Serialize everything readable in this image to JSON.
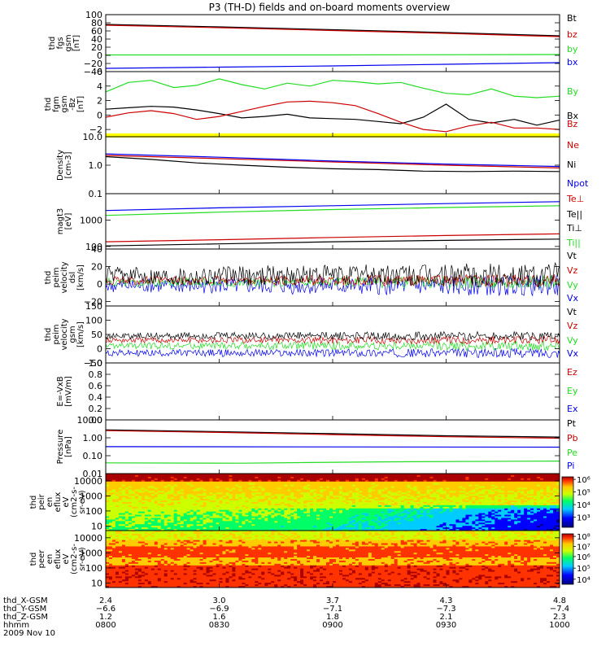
{
  "title": "P3 (TH-D) fields and on-board moments overview",
  "colors": {
    "black": "#000000",
    "red": "#cc0000",
    "green": "#22dd22",
    "blue": "#0000ee",
    "yellow": "#ffff00"
  },
  "chart_data": [
    {
      "id": "fgs",
      "type": "line",
      "ylabel": [
        "thd",
        "fgs",
        "gsm",
        "[nT]"
      ],
      "ylim": [
        -40,
        100
      ],
      "yticks": [
        {
          "v": 100,
          "l": "100"
        },
        {
          "v": 80,
          "l": "80"
        },
        {
          "v": 60,
          "l": "60"
        },
        {
          "v": 40,
          "l": "40"
        },
        {
          "v": 20,
          "l": "20"
        },
        {
          "v": 0,
          "l": "0"
        },
        {
          "v": -20,
          "l": "−20"
        },
        {
          "v": -40,
          "l": "−40"
        }
      ],
      "legend": [
        {
          "t": "Bt",
          "c": "black"
        },
        {
          "t": "bz",
          "c": "red"
        },
        {
          "t": "by",
          "c": "green"
        },
        {
          "t": "bx",
          "c": "blue"
        }
      ],
      "series": [
        {
          "c": "black",
          "x": [
            0,
            0.25,
            0.5,
            0.75,
            1
          ],
          "y": [
            76,
            70,
            63,
            56,
            48
          ]
        },
        {
          "c": "red",
          "x": [
            0,
            0.25,
            0.5,
            0.75,
            1
          ],
          "y": [
            74,
            68,
            61,
            54,
            46
          ]
        },
        {
          "c": "green",
          "x": [
            0,
            0.5,
            1
          ],
          "y": [
            1,
            1,
            2
          ]
        },
        {
          "c": "blue",
          "x": [
            0,
            0.25,
            0.5,
            0.75,
            1
          ],
          "y": [
            -32,
            -29,
            -26,
            -22,
            -18
          ]
        }
      ]
    },
    {
      "id": "fgm",
      "type": "line",
      "ylabel": [
        "thd",
        "fgm",
        "gsm",
        "-Bz",
        "[nT]"
      ],
      "ylim": [
        -3,
        6
      ],
      "yticks": [
        {
          "v": 6,
          "l": "6"
        },
        {
          "v": 4,
          "l": "4"
        },
        {
          "v": 2,
          "l": "2"
        },
        {
          "v": 0,
          "l": "0"
        },
        {
          "v": -2,
          "l": "−2"
        }
      ],
      "legend": [
        {
          "t": "By",
          "c": "green"
        },
        {
          "t": "Bx",
          "c": "black"
        },
        {
          "t": "Bz",
          "c": "red"
        }
      ],
      "series": [
        {
          "c": "green",
          "x": [
            0,
            0.05,
            0.1,
            0.15,
            0.2,
            0.25,
            0.3,
            0.35,
            0.4,
            0.45,
            0.5,
            0.55,
            0.6,
            0.65,
            0.7,
            0.75,
            0.8,
            0.85,
            0.9,
            0.95,
            1
          ],
          "y": [
            3.2,
            4.5,
            4.8,
            3.8,
            4.1,
            5.0,
            4.2,
            3.6,
            4.4,
            4.0,
            4.8,
            4.6,
            4.3,
            4.5,
            3.7,
            3.0,
            2.8,
            3.6,
            2.6,
            2.4,
            2.6
          ]
        },
        {
          "c": "black",
          "x": [
            0,
            0.05,
            0.1,
            0.15,
            0.2,
            0.25,
            0.3,
            0.35,
            0.4,
            0.45,
            0.5,
            0.55,
            0.6,
            0.65,
            0.7,
            0.75,
            0.8,
            0.85,
            0.9,
            0.95,
            1
          ],
          "y": [
            0.8,
            1.0,
            1.2,
            1.1,
            0.7,
            0.2,
            -0.4,
            -0.2,
            0.1,
            -0.4,
            -0.5,
            -0.6,
            -0.9,
            -1.2,
            -0.3,
            1.5,
            -0.6,
            -1.1,
            -0.6,
            -1.4,
            -0.7
          ]
        },
        {
          "c": "red",
          "x": [
            0,
            0.05,
            0.1,
            0.15,
            0.2,
            0.25,
            0.3,
            0.35,
            0.4,
            0.45,
            0.5,
            0.55,
            0.6,
            0.65,
            0.7,
            0.75,
            0.8,
            0.85,
            0.9,
            0.95,
            1
          ],
          "y": [
            -0.3,
            0.3,
            0.6,
            0.2,
            -0.6,
            -0.2,
            0.5,
            1.2,
            1.8,
            1.9,
            1.7,
            1.3,
            0.2,
            -1.0,
            -2.0,
            -2.3,
            -1.5,
            -1.0,
            -1.8,
            -1.8,
            -2.0
          ]
        }
      ],
      "bar": {
        "c": "yellow",
        "v": -3
      }
    },
    {
      "id": "density",
      "type": "line",
      "scale": "log",
      "ylabel": [
        "Density",
        "[cm-3]"
      ],
      "ylim": [
        0.1,
        10
      ],
      "yticks": [
        {
          "v": 10,
          "l": "10.0"
        },
        {
          "v": 1,
          "l": "1.0"
        },
        {
          "v": 0.1,
          "l": "0.1"
        }
      ],
      "legend": [
        {
          "t": "Ne",
          "c": "red"
        },
        {
          "t": "Ni",
          "c": "black"
        },
        {
          "t": "Npot",
          "c": "blue"
        }
      ],
      "series": [
        {
          "c": "red",
          "x": [
            0,
            0.25,
            0.5,
            0.75,
            1
          ],
          "y": [
            2.2,
            1.7,
            1.3,
            1.0,
            0.8
          ]
        },
        {
          "c": "black",
          "x": [
            0,
            0.1,
            0.2,
            0.3,
            0.4,
            0.5,
            0.6,
            0.7,
            0.8,
            0.9,
            1
          ],
          "y": [
            2.0,
            1.6,
            1.2,
            1.0,
            0.85,
            0.75,
            0.7,
            0.62,
            0.6,
            0.62,
            0.6
          ]
        },
        {
          "c": "blue",
          "x": [
            0,
            0.25,
            0.5,
            0.75,
            1
          ],
          "y": [
            2.5,
            1.9,
            1.4,
            1.1,
            0.9
          ]
        }
      ]
    },
    {
      "id": "magt3",
      "type": "line",
      "scale": "log",
      "ylabel": [
        "magt3",
        "[eV]"
      ],
      "ylim": [
        80,
        10000
      ],
      "yticks": [
        {
          "v": 1000,
          "l": "1000"
        },
        {
          "v": 100,
          "l": "100"
        }
      ],
      "legend": [
        {
          "t": "Te⊥",
          "c": "red"
        },
        {
          "t": "Te||",
          "c": "black"
        },
        {
          "t": "Ti⊥",
          "c": "black"
        },
        {
          "t": "Ti||",
          "c": "green"
        }
      ],
      "series": [
        {
          "c": "blue",
          "x": [
            0,
            0.25,
            0.5,
            0.75,
            1
          ],
          "y": [
            2300,
            2900,
            3500,
            4200,
            5000
          ]
        },
        {
          "c": "green",
          "x": [
            0,
            0.25,
            0.5,
            0.75,
            1
          ],
          "y": [
            1500,
            2000,
            2500,
            3000,
            3500
          ]
        },
        {
          "c": "red",
          "x": [
            0,
            0.25,
            0.5,
            0.75,
            1
          ],
          "y": [
            150,
            180,
            220,
            260,
            300
          ]
        },
        {
          "c": "black",
          "x": [
            0,
            0.25,
            0.5,
            0.75,
            1
          ],
          "y": [
            105,
            125,
            150,
            170,
            190
          ]
        }
      ]
    },
    {
      "id": "vel1",
      "type": "line",
      "ylabel": [
        "thd",
        "peim",
        "velocity",
        "dsl",
        "[km/s]"
      ],
      "ylim": [
        -25,
        40
      ],
      "yticks": [
        {
          "v": 40,
          "l": "40"
        },
        {
          "v": 20,
          "l": "20"
        },
        {
          "v": 0,
          "l": "0"
        },
        {
          "v": -20,
          "l": "−20"
        }
      ],
      "legend": [
        {
          "t": "Vt",
          "c": "black"
        },
        {
          "t": "Vz",
          "c": "red"
        },
        {
          "t": "Vy",
          "c": "green"
        },
        {
          "t": "Vx",
          "c": "blue"
        }
      ],
      "noise": [
        {
          "c": "blue",
          "m": -2,
          "a": 10
        },
        {
          "c": "green",
          "m": 2,
          "a": 6
        },
        {
          "c": "red",
          "m": 4,
          "a": 6
        },
        {
          "c": "black",
          "m": 10,
          "a": 12
        }
      ]
    },
    {
      "id": "vel2",
      "type": "line",
      "ylabel": [
        "thd",
        "peim",
        "velocity",
        "gsm",
        "[km/s]"
      ],
      "ylim": [
        -50,
        150
      ],
      "yticks": [
        {
          "v": 150,
          "l": "150"
        },
        {
          "v": 100,
          "l": "100"
        },
        {
          "v": 50,
          "l": "50"
        },
        {
          "v": 0,
          "l": "0"
        },
        {
          "v": -50,
          "l": "−50"
        }
      ],
      "legend": [
        {
          "t": "Vt",
          "c": "black"
        },
        {
          "t": "Vz",
          "c": "red"
        },
        {
          "t": "Vy",
          "c": "green"
        },
        {
          "t": "Vx",
          "c": "blue"
        }
      ],
      "noise": [
        {
          "c": "blue",
          "m": -15,
          "a": 14
        },
        {
          "c": "green",
          "m": 10,
          "a": 14
        },
        {
          "c": "red",
          "m": 30,
          "a": 12
        },
        {
          "c": "black",
          "m": 45,
          "a": 14
        }
      ]
    },
    {
      "id": "efield",
      "type": "line",
      "ylabel": [
        "E=-VxB",
        "[mV/m]"
      ],
      "ylim": [
        0,
        1
      ],
      "yticks": [
        {
          "v": 1,
          "l": "1.0"
        },
        {
          "v": 0.8,
          "l": "0.8"
        },
        {
          "v": 0.6,
          "l": "0.6"
        },
        {
          "v": 0.4,
          "l": "0.4"
        },
        {
          "v": 0.2,
          "l": "0.2"
        },
        {
          "v": 0,
          "l": "0.0"
        }
      ],
      "legend": [
        {
          "t": "Ez",
          "c": "red"
        },
        {
          "t": "Ey",
          "c": "green"
        },
        {
          "t": "Ex",
          "c": "blue"
        }
      ],
      "series": []
    },
    {
      "id": "pressure",
      "type": "line",
      "scale": "log",
      "ylabel": [
        "Pressure",
        "[nPa]"
      ],
      "ylim": [
        0.01,
        10
      ],
      "yticks": [
        {
          "v": 10,
          "l": "10.00"
        },
        {
          "v": 1,
          "l": "1.00"
        },
        {
          "v": 0.1,
          "l": "0.10"
        },
        {
          "v": 0.01,
          "l": "0.01"
        }
      ],
      "legend": [
        {
          "t": "Pt",
          "c": "black"
        },
        {
          "t": "Pb",
          "c": "red"
        },
        {
          "t": "Pe",
          "c": "green"
        },
        {
          "t": "Pi",
          "c": "blue"
        }
      ],
      "series": [
        {
          "c": "black",
          "x": [
            0,
            0.25,
            0.5,
            0.75,
            1
          ],
          "y": [
            2.8,
            2.2,
            1.7,
            1.3,
            1.1
          ]
        },
        {
          "c": "red",
          "x": [
            0,
            0.25,
            0.5,
            0.75,
            1
          ],
          "y": [
            2.5,
            2.0,
            1.5,
            1.15,
            0.95
          ]
        },
        {
          "c": "blue",
          "x": [
            0,
            0.5,
            1
          ],
          "y": [
            0.32,
            0.31,
            0.3
          ]
        },
        {
          "c": "green",
          "x": [
            0,
            0.3,
            0.6,
            1
          ],
          "y": [
            0.04,
            0.038,
            0.045,
            0.05
          ]
        }
      ]
    },
    {
      "id": "ion_spec",
      "type": "heatmap",
      "scale": "log",
      "ylabel": [
        "thd",
        "peir",
        "en",
        "eflux",
        "eV",
        "(cm2-s-",
        "sr-eV)"
      ],
      "ylim": [
        5,
        30000
      ],
      "yticks": [
        {
          "v": 10000,
          "l": "10000"
        },
        {
          "v": 1000,
          "l": "1000"
        },
        {
          "v": 100,
          "l": "100"
        },
        {
          "v": 10,
          "l": "10"
        }
      ],
      "cbar": [
        {
          "l": "10⁶",
          "f": 0.05
        },
        {
          "l": "10⁵",
          "f": 0.3
        },
        {
          "l": "10⁴",
          "f": 0.55
        },
        {
          "l": "10³",
          "f": 0.8
        }
      ]
    },
    {
      "id": "elec_spec",
      "type": "heatmap",
      "scale": "log",
      "ylabel": [
        "thd",
        "peer",
        "en",
        "eflux",
        "eV",
        "(cm2-s-",
        "sr-eV)"
      ],
      "ylim": [
        5,
        30000
      ],
      "yticks": [
        {
          "v": 10000,
          "l": "10000"
        },
        {
          "v": 1000,
          "l": "1000"
        },
        {
          "v": 100,
          "l": "100"
        },
        {
          "v": 10,
          "l": "10"
        }
      ],
      "cbar": [
        {
          "l": "10⁸",
          "f": 0.05
        },
        {
          "l": "10⁷",
          "f": 0.25
        },
        {
          "l": "10⁶",
          "f": 0.45
        },
        {
          "l": "10⁵",
          "f": 0.68
        },
        {
          "l": "10⁴",
          "f": 0.9
        }
      ]
    }
  ],
  "xaxis": {
    "rows": [
      {
        "name": "thd_X-GSM",
        "values": [
          "2.4",
          "3.0",
          "3.7",
          "4.3",
          "4.8"
        ]
      },
      {
        "name": "thd_Y-GSM",
        "values": [
          "−6.6",
          "−6.9",
          "−7.1",
          "−7.3",
          "−7.4"
        ]
      },
      {
        "name": "thd_Z-GSM",
        "values": [
          "1.2",
          "1.6",
          "1.8",
          "2.1",
          "2.3"
        ]
      },
      {
        "name": "hhmm",
        "values": [
          "0800",
          "0830",
          "0900",
          "0930",
          "1000"
        ]
      }
    ],
    "date": "2009 Nov 10"
  }
}
